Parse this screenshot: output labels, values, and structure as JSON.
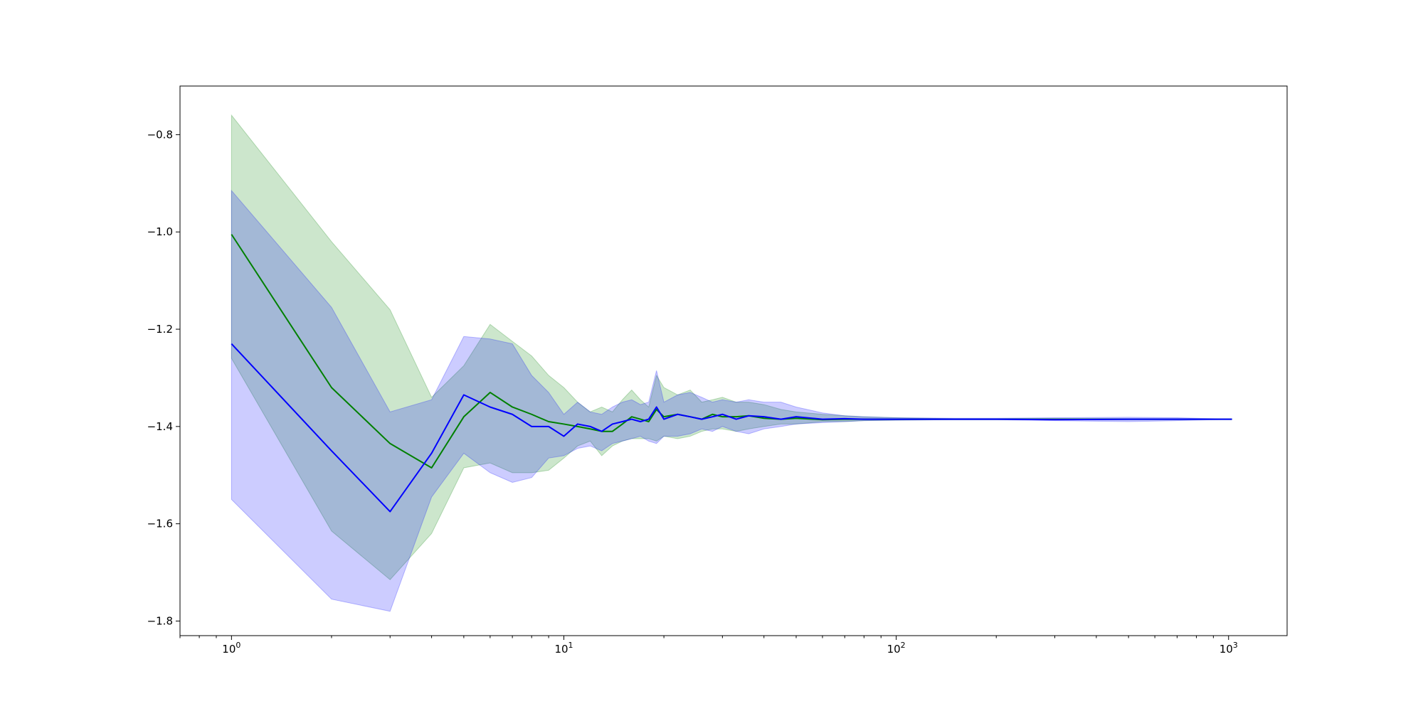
{
  "chart_data": {
    "type": "line",
    "title": "",
    "xlabel": "",
    "ylabel": "",
    "xscale": "log",
    "xlim": [
      0.7,
      1500
    ],
    "ylim": [
      -1.83,
      -0.7
    ],
    "grid": false,
    "legend": "none",
    "x_ticks": [
      {
        "value": 1,
        "base": "10",
        "exp": "0"
      },
      {
        "value": 10,
        "base": "10",
        "exp": "1"
      },
      {
        "value": 100,
        "base": "10",
        "exp": "2"
      },
      {
        "value": 1000,
        "base": "10",
        "exp": "3"
      }
    ],
    "y_ticks": [
      {
        "value": -0.8,
        "label": "−0.8"
      },
      {
        "value": -1.0,
        "label": "−1.0"
      },
      {
        "value": -1.2,
        "label": "−1.2"
      },
      {
        "value": -1.4,
        "label": "−1.4"
      },
      {
        "value": -1.6,
        "label": "−1.6"
      },
      {
        "value": -1.8,
        "label": "−1.8"
      }
    ],
    "series": [
      {
        "color": "#008000",
        "band_color": "#008000",
        "x": [
          1,
          2,
          3,
          4,
          5,
          6,
          7,
          8,
          9,
          10,
          11,
          12,
          13,
          14,
          15,
          16,
          17,
          18,
          19,
          20,
          22,
          24,
          26,
          28,
          30,
          33,
          36,
          40,
          45,
          50,
          60,
          70,
          80,
          100,
          150,
          200,
          300,
          500,
          700,
          1024
        ],
        "values": [
          -1.005,
          -1.32,
          -1.435,
          -1.485,
          -1.38,
          -1.33,
          -1.36,
          -1.375,
          -1.39,
          -1.395,
          -1.4,
          -1.405,
          -1.41,
          -1.41,
          -1.395,
          -1.38,
          -1.385,
          -1.39,
          -1.365,
          -1.38,
          -1.375,
          -1.38,
          -1.385,
          -1.375,
          -1.38,
          -1.38,
          -1.378,
          -1.383,
          -1.385,
          -1.383,
          -1.386,
          -1.385,
          -1.385,
          -1.385,
          -1.385,
          -1.385,
          -1.385,
          -1.385,
          -1.385,
          -1.385
        ],
        "lower": [
          -1.26,
          -1.615,
          -1.715,
          -1.62,
          -1.485,
          -1.475,
          -1.495,
          -1.495,
          -1.49,
          -1.465,
          -1.44,
          -1.43,
          -1.46,
          -1.44,
          -1.43,
          -1.425,
          -1.425,
          -1.425,
          -1.43,
          -1.42,
          -1.425,
          -1.42,
          -1.41,
          -1.405,
          -1.405,
          -1.41,
          -1.405,
          -1.4,
          -1.395,
          -1.395,
          -1.39,
          -1.39,
          -1.388,
          -1.387,
          -1.386,
          -1.386,
          -1.386,
          -1.386,
          -1.386,
          -1.385
        ],
        "upper": [
          -0.76,
          -1.02,
          -1.16,
          -1.34,
          -1.275,
          -1.19,
          -1.225,
          -1.255,
          -1.295,
          -1.32,
          -1.35,
          -1.37,
          -1.36,
          -1.37,
          -1.345,
          -1.325,
          -1.345,
          -1.36,
          -1.295,
          -1.32,
          -1.335,
          -1.325,
          -1.35,
          -1.345,
          -1.34,
          -1.35,
          -1.35,
          -1.355,
          -1.365,
          -1.37,
          -1.375,
          -1.378,
          -1.38,
          -1.382,
          -1.384,
          -1.384,
          -1.384,
          -1.384,
          -1.384,
          -1.385
        ]
      },
      {
        "color": "#0000ff",
        "band_color": "#0000ff",
        "x": [
          1,
          2,
          3,
          4,
          5,
          6,
          7,
          8,
          9,
          10,
          11,
          12,
          13,
          14,
          15,
          16,
          17,
          18,
          19,
          20,
          22,
          24,
          26,
          28,
          30,
          33,
          36,
          40,
          45,
          50,
          60,
          70,
          80,
          100,
          150,
          200,
          300,
          500,
          700,
          1024
        ],
        "values": [
          -1.23,
          -1.45,
          -1.575,
          -1.455,
          -1.335,
          -1.36,
          -1.375,
          -1.4,
          -1.4,
          -1.42,
          -1.395,
          -1.4,
          -1.41,
          -1.395,
          -1.39,
          -1.385,
          -1.39,
          -1.385,
          -1.36,
          -1.385,
          -1.375,
          -1.38,
          -1.385,
          -1.38,
          -1.375,
          -1.385,
          -1.378,
          -1.38,
          -1.385,
          -1.38,
          -1.385,
          -1.384,
          -1.385,
          -1.385,
          -1.385,
          -1.385,
          -1.386,
          -1.385,
          -1.385,
          -1.385
        ],
        "lower": [
          -1.55,
          -1.755,
          -1.78,
          -1.545,
          -1.455,
          -1.495,
          -1.515,
          -1.505,
          -1.465,
          -1.46,
          -1.445,
          -1.44,
          -1.45,
          -1.435,
          -1.43,
          -1.425,
          -1.42,
          -1.43,
          -1.435,
          -1.42,
          -1.42,
          -1.415,
          -1.405,
          -1.41,
          -1.4,
          -1.41,
          -1.415,
          -1.405,
          -1.4,
          -1.395,
          -1.392,
          -1.39,
          -1.388,
          -1.387,
          -1.386,
          -1.386,
          -1.388,
          -1.39,
          -1.388,
          -1.385
        ],
        "upper": [
          -0.915,
          -1.155,
          -1.37,
          -1.345,
          -1.215,
          -1.22,
          -1.23,
          -1.295,
          -1.33,
          -1.375,
          -1.35,
          -1.37,
          -1.375,
          -1.36,
          -1.35,
          -1.345,
          -1.355,
          -1.35,
          -1.285,
          -1.35,
          -1.335,
          -1.33,
          -1.34,
          -1.35,
          -1.345,
          -1.35,
          -1.345,
          -1.35,
          -1.35,
          -1.36,
          -1.372,
          -1.378,
          -1.38,
          -1.382,
          -1.383,
          -1.383,
          -1.382,
          -1.381,
          -1.382,
          -1.385
        ]
      }
    ]
  }
}
